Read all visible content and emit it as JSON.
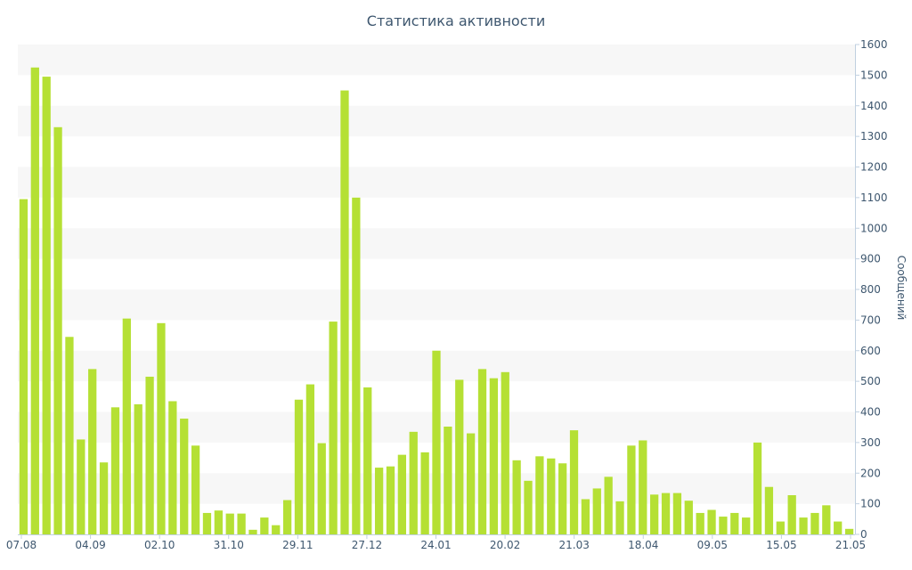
{
  "chart_data": {
    "type": "bar",
    "title": "Статистика активности",
    "xlabel": "",
    "ylabel": "Сообщений",
    "ylim": [
      0,
      1600
    ],
    "y_ticks": [
      0,
      100,
      200,
      300,
      400,
      500,
      600,
      700,
      800,
      900,
      1000,
      1100,
      1200,
      1300,
      1400,
      1500,
      1600
    ],
    "x_tick_labels": [
      "07.08",
      "04.09",
      "02.10",
      "31.10",
      "29.11",
      "27.12",
      "24.01",
      "20.02",
      "21.03",
      "18.04",
      "09.05",
      "15.05",
      "21.05"
    ],
    "grid": "horizontal alternating bands",
    "y_axis_position": "right",
    "bar_color": "#b5e034",
    "values": [
      1095,
      1525,
      1495,
      1330,
      645,
      310,
      540,
      235,
      415,
      705,
      425,
      515,
      690,
      435,
      378,
      290,
      70,
      78,
      68,
      68,
      15,
      55,
      30,
      112,
      440,
      490,
      298,
      695,
      1450,
      1100,
      480,
      218,
      222,
      260,
      335,
      268,
      600,
      352,
      505,
      330,
      540,
      510,
      530,
      242,
      175,
      255,
      248,
      232,
      340,
      115,
      150,
      188,
      108,
      290,
      307,
      130,
      135,
      135,
      110,
      70,
      80,
      58,
      70,
      55,
      300,
      155,
      42,
      128,
      55,
      70,
      95,
      42,
      18
    ]
  }
}
